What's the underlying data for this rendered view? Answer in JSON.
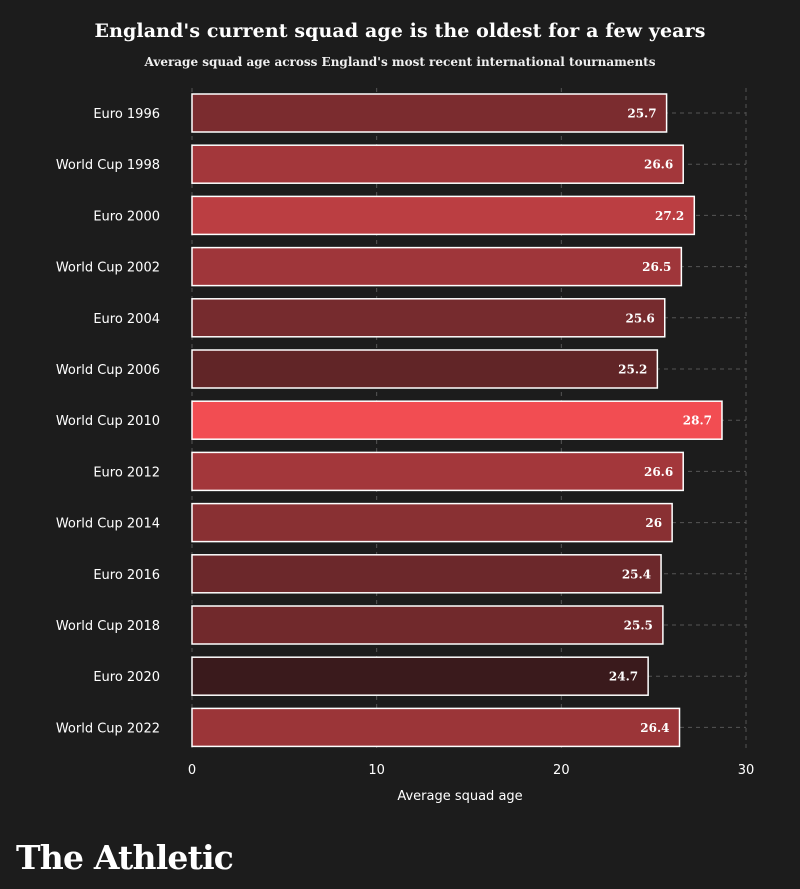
{
  "title": "England's current squad age is the oldest for a few years",
  "subtitle": "Average squad age across England's most recent international tournaments",
  "brand": "The Athletic",
  "chart_data": {
    "type": "bar",
    "orientation": "horizontal",
    "categories": [
      "Euro 1996",
      "World Cup 1998",
      "Euro 2000",
      "World Cup 2002",
      "Euro 2004",
      "World Cup 2006",
      "World Cup 2010",
      "Euro 2012",
      "World Cup 2014",
      "Euro 2016",
      "World Cup 2018",
      "Euro 2020",
      "World Cup 2022"
    ],
    "values": [
      25.7,
      26.6,
      27.2,
      26.5,
      25.6,
      25.2,
      28.7,
      26.6,
      26,
      25.4,
      25.5,
      24.7,
      26.4
    ],
    "labels": [
      "25.7",
      "26.6",
      "27.2",
      "26.5",
      "25.6",
      "25.2",
      "28.7",
      "26.6",
      "26",
      "25.4",
      "25.5",
      "24.7",
      "26.4"
    ],
    "title": "England's current squad age is the oldest for a few years",
    "subtitle": "Average squad age across England's most recent international tournaments",
    "xlabel": "Average squad age",
    "ylabel": "",
    "xlim": [
      0,
      30
    ],
    "xticks": [
      0,
      10,
      20,
      30
    ],
    "grid": true,
    "colors": {
      "bar_dark": "#3a1a1c",
      "bar_light": "#f24d52",
      "bar_stroke": "#ffffff",
      "grid": "#555555",
      "background": "#1c1c1c"
    }
  }
}
